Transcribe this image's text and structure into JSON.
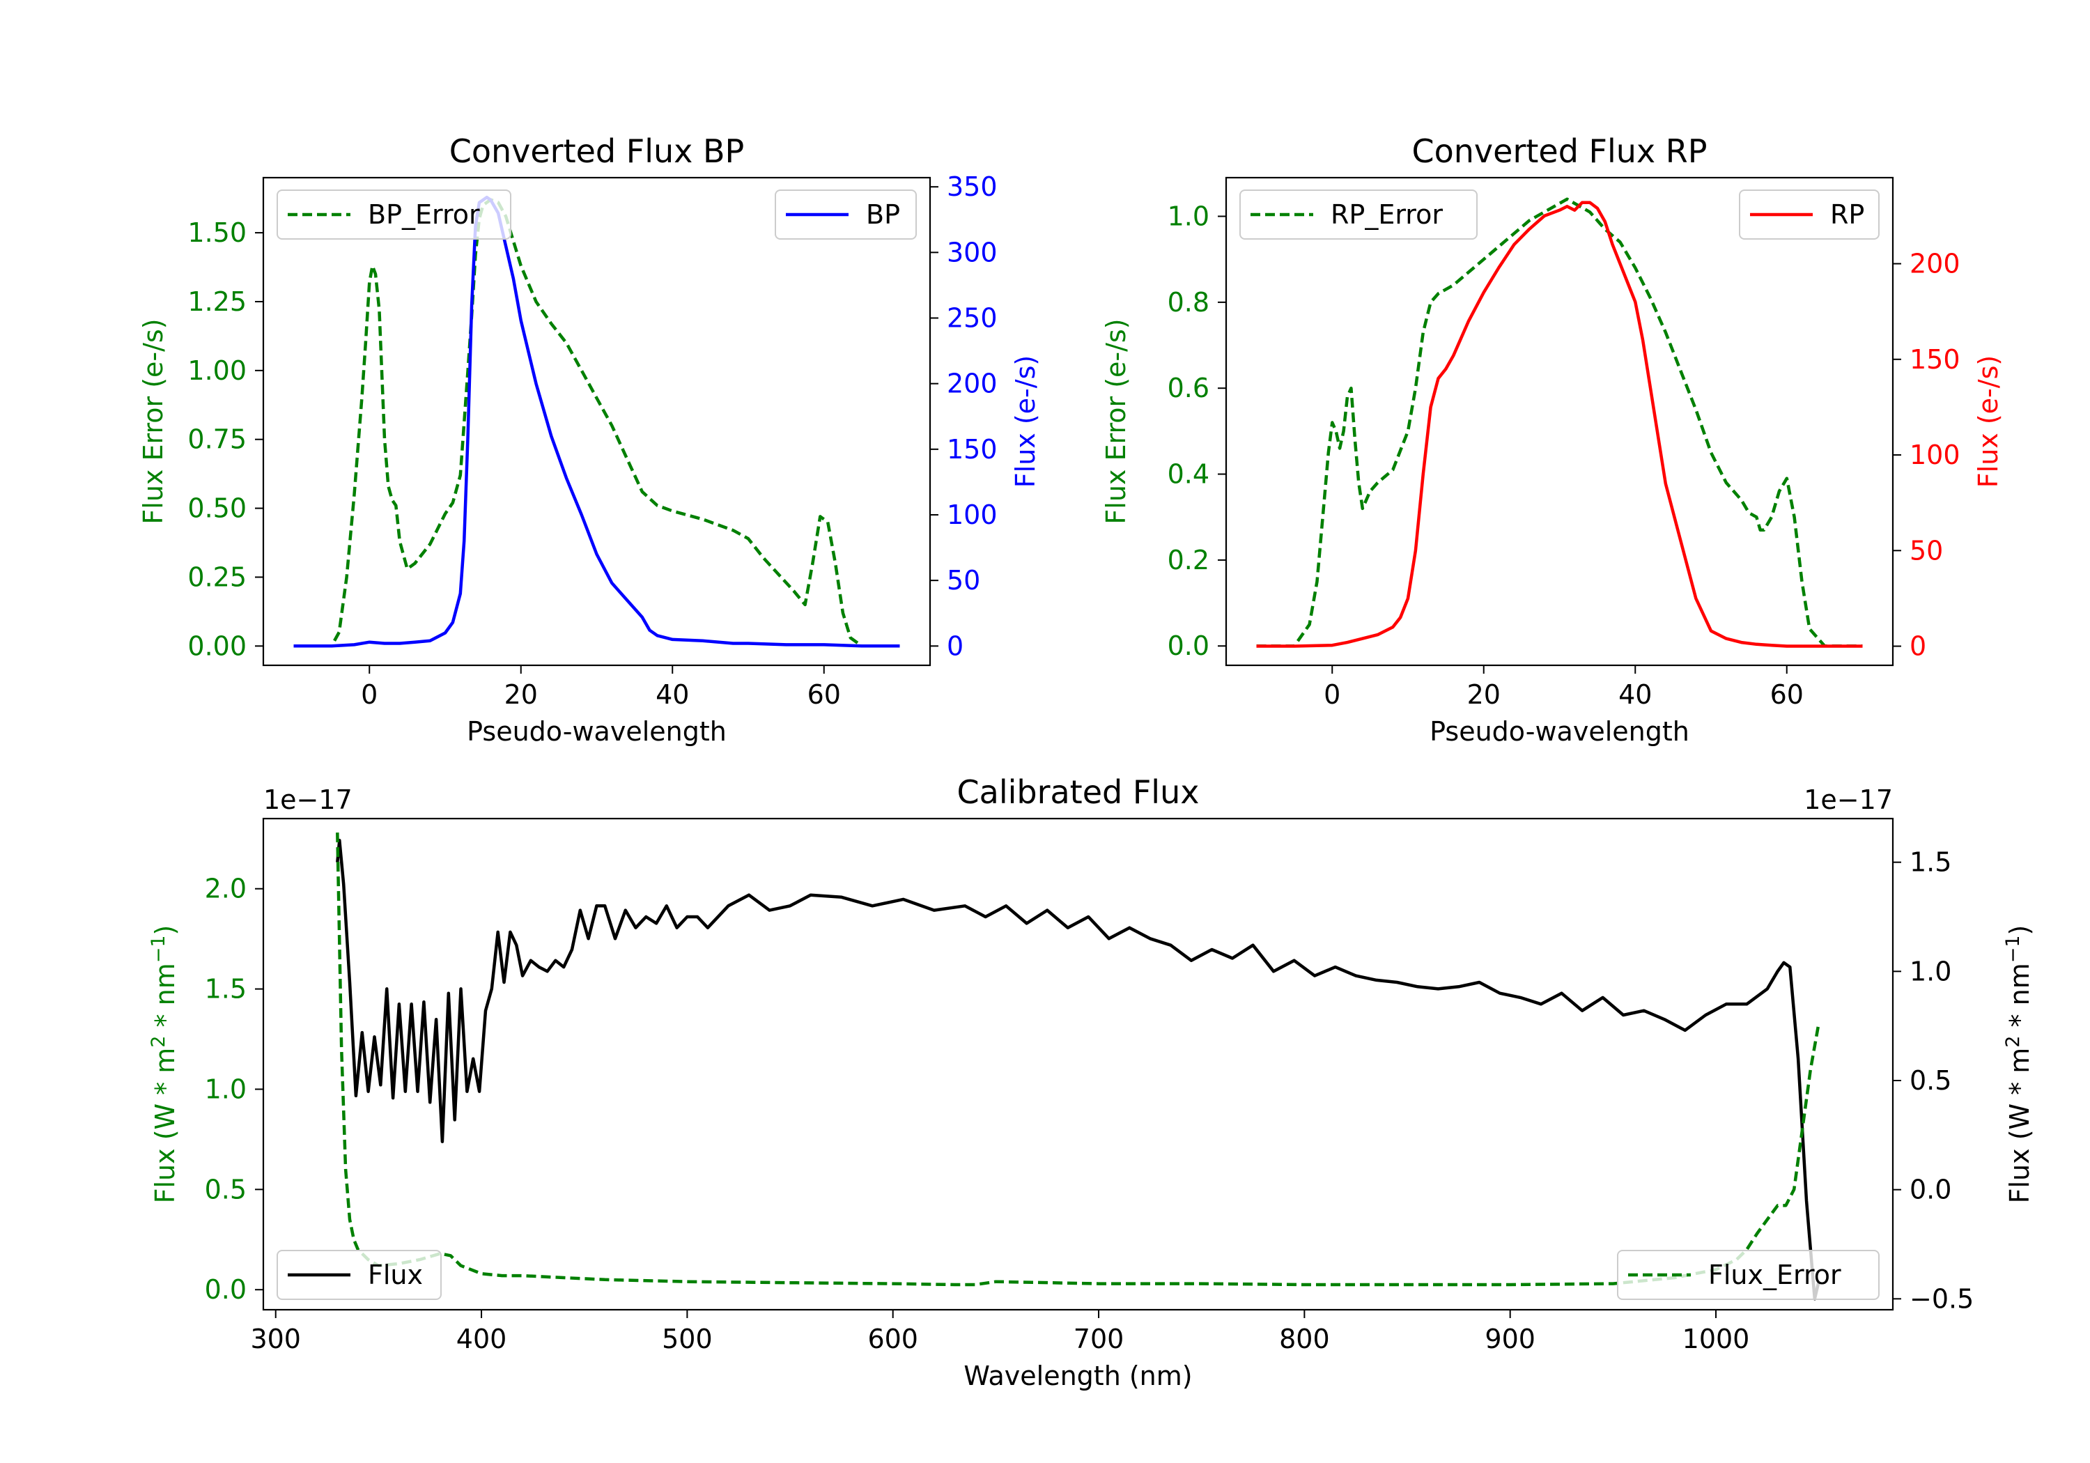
{
  "colors": {
    "green": "#008000",
    "blue": "#0000ff",
    "red": "#ff0000",
    "black": "#000000"
  },
  "chart_data": [
    {
      "type": "line",
      "title": "Converted Flux BP",
      "xlabel": "Pseudo-wavelength",
      "ylabel_left": "Flux Error (e-/s)",
      "ylabel_right": "Flux (e-/s)",
      "xlim": [
        -14,
        74
      ],
      "ylim_left": [
        -0.07,
        1.7
      ],
      "ylim_right": [
        -14.7,
        357
      ],
      "xticks": [
        "0",
        "20",
        "40",
        "60"
      ],
      "xtick_values": [
        0,
        20,
        40,
        60
      ],
      "yticks_left": [
        "0.00",
        "0.25",
        "0.50",
        "0.75",
        "1.00",
        "1.25",
        "1.50"
      ],
      "ytick_values_left": [
        0,
        0.25,
        0.5,
        0.75,
        1.0,
        1.25,
        1.5
      ],
      "yticks_right": [
        "0",
        "50",
        "100",
        "150",
        "200",
        "250",
        "300",
        "350"
      ],
      "ytick_values_right": [
        0,
        50,
        100,
        150,
        200,
        250,
        300,
        350
      ],
      "legend_left": "BP_Error",
      "legend_right": "BP",
      "series": [
        {
          "name": "BP_Error",
          "axis": "left",
          "color": "green",
          "style": "dashed",
          "x": [
            -10,
            -5,
            -4,
            -3,
            -2,
            -1,
            -0.5,
            0,
            0.4,
            0.8,
            1.3,
            2,
            2.5,
            3,
            3.5,
            4,
            5,
            6,
            8,
            10,
            11,
            12,
            13,
            13.5,
            14,
            14.5,
            15,
            16,
            17,
            18,
            19,
            20,
            22,
            24,
            26,
            28,
            30,
            32,
            34,
            36,
            38,
            40,
            44,
            48,
            50,
            52,
            56,
            57.5,
            58.5,
            59.5,
            60.5,
            61.5,
            62.5,
            63.5,
            65,
            70
          ],
          "y": [
            0,
            0,
            0.05,
            0.25,
            0.55,
            0.9,
            1.1,
            1.32,
            1.38,
            1.35,
            1.22,
            0.75,
            0.58,
            0.53,
            0.51,
            0.38,
            0.28,
            0.3,
            0.37,
            0.48,
            0.52,
            0.62,
            1.0,
            1.2,
            1.42,
            1.55,
            1.6,
            1.62,
            1.61,
            1.56,
            1.47,
            1.38,
            1.25,
            1.17,
            1.1,
            1.0,
            0.9,
            0.8,
            0.68,
            0.56,
            0.51,
            0.49,
            0.46,
            0.42,
            0.39,
            0.32,
            0.2,
            0.15,
            0.3,
            0.47,
            0.45,
            0.3,
            0.12,
            0.03,
            0,
            0
          ]
        },
        {
          "name": "BP",
          "axis": "right",
          "color": "blue",
          "style": "solid",
          "x": [
            -10,
            -5,
            -2,
            0,
            2,
            4,
            6,
            8,
            10,
            11,
            12,
            12.5,
            13,
            13.5,
            14,
            14.5,
            15,
            15.5,
            16,
            17,
            18,
            19,
            20,
            22,
            24,
            26,
            28,
            30,
            32,
            34,
            36,
            37,
            38,
            40,
            44,
            48,
            50,
            55,
            60,
            65,
            70
          ],
          "y": [
            0,
            0,
            1,
            3,
            2,
            2,
            3,
            4,
            10,
            18,
            40,
            80,
            160,
            260,
            320,
            338,
            340,
            342,
            340,
            330,
            305,
            280,
            248,
            200,
            160,
            128,
            100,
            70,
            48,
            35,
            22,
            12,
            8,
            5,
            4,
            2,
            2,
            1,
            1,
            0,
            0
          ]
        }
      ]
    },
    {
      "type": "line",
      "title": "Converted Flux RP",
      "xlabel": "Pseudo-wavelength",
      "ylabel_left": "Flux Error (e-/s)",
      "ylabel_right": "Flux (e-/s)",
      "xlim": [
        -14,
        74
      ],
      "ylim_left": [
        -0.045,
        1.09
      ],
      "ylim_right": [
        -10,
        245
      ],
      "xticks": [
        "0",
        "20",
        "40",
        "60"
      ],
      "xtick_values": [
        0,
        20,
        40,
        60
      ],
      "yticks_left": [
        "0.0",
        "0.2",
        "0.4",
        "0.6",
        "0.8",
        "1.0"
      ],
      "ytick_values_left": [
        0,
        0.2,
        0.4,
        0.6,
        0.8,
        1.0
      ],
      "yticks_right": [
        "0",
        "50",
        "100",
        "150",
        "200"
      ],
      "ytick_values_right": [
        0,
        50,
        100,
        150,
        200
      ],
      "legend_left": "RP_Error",
      "legend_right": "RP",
      "series": [
        {
          "name": "RP_Error",
          "axis": "left",
          "color": "green",
          "style": "dashed",
          "x": [
            -10,
            -5,
            -3,
            -2,
            -1,
            -0.5,
            0,
            0.5,
            1,
            1.5,
            2,
            2.5,
            3,
            3.5,
            4,
            5,
            6,
            8,
            10,
            11,
            12,
            13,
            14,
            16,
            18,
            20,
            22,
            24,
            26,
            28,
            30,
            31,
            32,
            34,
            36,
            38,
            40,
            42,
            44,
            46,
            48,
            50,
            52,
            54,
            55,
            56,
            56.5,
            57,
            58,
            59,
            60,
            61,
            62,
            63,
            65,
            70
          ],
          "y": [
            0,
            0,
            0.05,
            0.15,
            0.35,
            0.45,
            0.52,
            0.5,
            0.46,
            0.5,
            0.58,
            0.6,
            0.48,
            0.38,
            0.32,
            0.36,
            0.38,
            0.41,
            0.5,
            0.6,
            0.73,
            0.8,
            0.82,
            0.84,
            0.87,
            0.9,
            0.93,
            0.96,
            0.99,
            1.01,
            1.03,
            1.04,
            1.03,
            1.01,
            0.97,
            0.94,
            0.88,
            0.81,
            0.73,
            0.64,
            0.55,
            0.45,
            0.38,
            0.34,
            0.31,
            0.3,
            0.27,
            0.27,
            0.3,
            0.36,
            0.39,
            0.3,
            0.15,
            0.04,
            0,
            0
          ]
        },
        {
          "name": "RP",
          "axis": "right",
          "color": "red",
          "style": "solid",
          "x": [
            -10,
            -5,
            0,
            2,
            4,
            6,
            8,
            9,
            10,
            11,
            12,
            13,
            14,
            15,
            16,
            18,
            20,
            22,
            24,
            26,
            28,
            30,
            31,
            32,
            33,
            34,
            35,
            36,
            37,
            38,
            39,
            40,
            41,
            42,
            43,
            44,
            46,
            48,
            50,
            52,
            54,
            56,
            58,
            60,
            65,
            70
          ],
          "y": [
            0,
            0,
            0.5,
            2,
            4,
            6,
            10,
            15,
            25,
            50,
            90,
            125,
            140,
            145,
            152,
            170,
            185,
            198,
            210,
            218,
            225,
            228,
            230,
            228,
            232,
            232,
            229,
            222,
            210,
            200,
            190,
            180,
            160,
            135,
            110,
            85,
            55,
            25,
            8,
            4,
            2,
            1,
            0.5,
            0,
            0,
            0
          ]
        }
      ]
    },
    {
      "type": "line",
      "title": "Calibrated Flux",
      "xlabel": "Wavelength (nm)",
      "ylabel_left": "Flux (W * m",
      "ylabel_right": "Flux (W * m",
      "ylabel_units": [
        "2",
        " * nm",
        "−1",
        ")"
      ],
      "offset_left": "1e−17",
      "offset_right": "1e−17",
      "xlim": [
        294,
        1086
      ],
      "ylim_left": [
        -0.1,
        2.35
      ],
      "ylim_right": [
        -0.55,
        1.7
      ],
      "xticks": [
        "300",
        "400",
        "500",
        "600",
        "700",
        "800",
        "900",
        "1000"
      ],
      "xtick_values": [
        300,
        400,
        500,
        600,
        700,
        800,
        900,
        1000
      ],
      "yticks_left": [
        "0.0",
        "0.5",
        "1.0",
        "1.5",
        "2.0"
      ],
      "ytick_values_left": [
        0,
        0.5,
        1.0,
        1.5,
        2.0
      ],
      "yticks_right": [
        "−0.5",
        "0.0",
        "0.5",
        "1.0",
        "1.5"
      ],
      "ytick_values_right": [
        -0.5,
        0,
        0.5,
        1.0,
        1.5
      ],
      "legend_left": "Flux",
      "legend_right": "Flux_Error",
      "series": [
        {
          "name": "Flux",
          "axis": "right",
          "color": "black",
          "style": "solid",
          "x": [
            330,
            331,
            333,
            336,
            339,
            342,
            345,
            348,
            351,
            354,
            357,
            360,
            363,
            366,
            369,
            372,
            375,
            378,
            381,
            384,
            387,
            390,
            393,
            396,
            399,
            402,
            405,
            408,
            411,
            414,
            417,
            420,
            424,
            428,
            432,
            436,
            440,
            444,
            448,
            452,
            456,
            460,
            465,
            470,
            475,
            480,
            485,
            490,
            495,
            500,
            505,
            510,
            520,
            530,
            540,
            550,
            560,
            575,
            590,
            605,
            620,
            635,
            645,
            655,
            665,
            675,
            685,
            695,
            705,
            715,
            725,
            735,
            745,
            755,
            765,
            775,
            785,
            795,
            805,
            815,
            825,
            835,
            845,
            855,
            865,
            875,
            885,
            895,
            905,
            915,
            925,
            935,
            945,
            955,
            965,
            975,
            985,
            995,
            1005,
            1015,
            1025,
            1030,
            1033,
            1036,
            1040,
            1044,
            1048,
            1050
          ],
          "y": [
            1.5,
            1.6,
            1.4,
            0.95,
            0.43,
            0.72,
            0.45,
            0.7,
            0.48,
            0.92,
            0.42,
            0.85,
            0.45,
            0.85,
            0.45,
            0.86,
            0.4,
            0.78,
            0.22,
            0.9,
            0.32,
            0.92,
            0.45,
            0.6,
            0.45,
            0.82,
            0.92,
            1.18,
            0.95,
            1.18,
            1.12,
            0.98,
            1.05,
            1.02,
            1.0,
            1.05,
            1.02,
            1.1,
            1.28,
            1.15,
            1.3,
            1.3,
            1.15,
            1.28,
            1.2,
            1.25,
            1.22,
            1.3,
            1.2,
            1.25,
            1.25,
            1.2,
            1.3,
            1.35,
            1.28,
            1.3,
            1.35,
            1.34,
            1.3,
            1.33,
            1.28,
            1.3,
            1.25,
            1.3,
            1.22,
            1.28,
            1.2,
            1.25,
            1.15,
            1.2,
            1.15,
            1.12,
            1.05,
            1.1,
            1.06,
            1.12,
            1.0,
            1.05,
            0.98,
            1.02,
            0.98,
            0.96,
            0.95,
            0.93,
            0.92,
            0.93,
            0.95,
            0.9,
            0.88,
            0.85,
            0.9,
            0.82,
            0.88,
            0.8,
            0.82,
            0.78,
            0.73,
            0.8,
            0.85,
            0.85,
            0.92,
            1.0,
            1.04,
            1.02,
            0.6,
            -0.05,
            -0.5,
            -0.42
          ]
        },
        {
          "name": "Flux_Error",
          "axis": "left",
          "color": "green",
          "style": "dashed",
          "x": [
            330,
            332,
            334,
            336,
            338,
            340,
            345,
            350,
            360,
            370,
            380,
            385,
            390,
            400,
            410,
            420,
            440,
            460,
            500,
            550,
            600,
            630,
            640,
            650,
            700,
            750,
            800,
            850,
            900,
            950,
            980,
            1000,
            1010,
            1015,
            1020,
            1025,
            1030,
            1034,
            1038,
            1042,
            1046,
            1050
          ],
          "y": [
            2.28,
            1.2,
            0.6,
            0.35,
            0.25,
            0.2,
            0.15,
            0.12,
            0.13,
            0.15,
            0.18,
            0.17,
            0.12,
            0.08,
            0.07,
            0.07,
            0.06,
            0.05,
            0.04,
            0.035,
            0.03,
            0.025,
            0.025,
            0.04,
            0.03,
            0.03,
            0.025,
            0.025,
            0.025,
            0.03,
            0.06,
            0.1,
            0.15,
            0.2,
            0.28,
            0.35,
            0.42,
            0.42,
            0.5,
            0.8,
            1.1,
            1.33
          ]
        }
      ]
    }
  ]
}
